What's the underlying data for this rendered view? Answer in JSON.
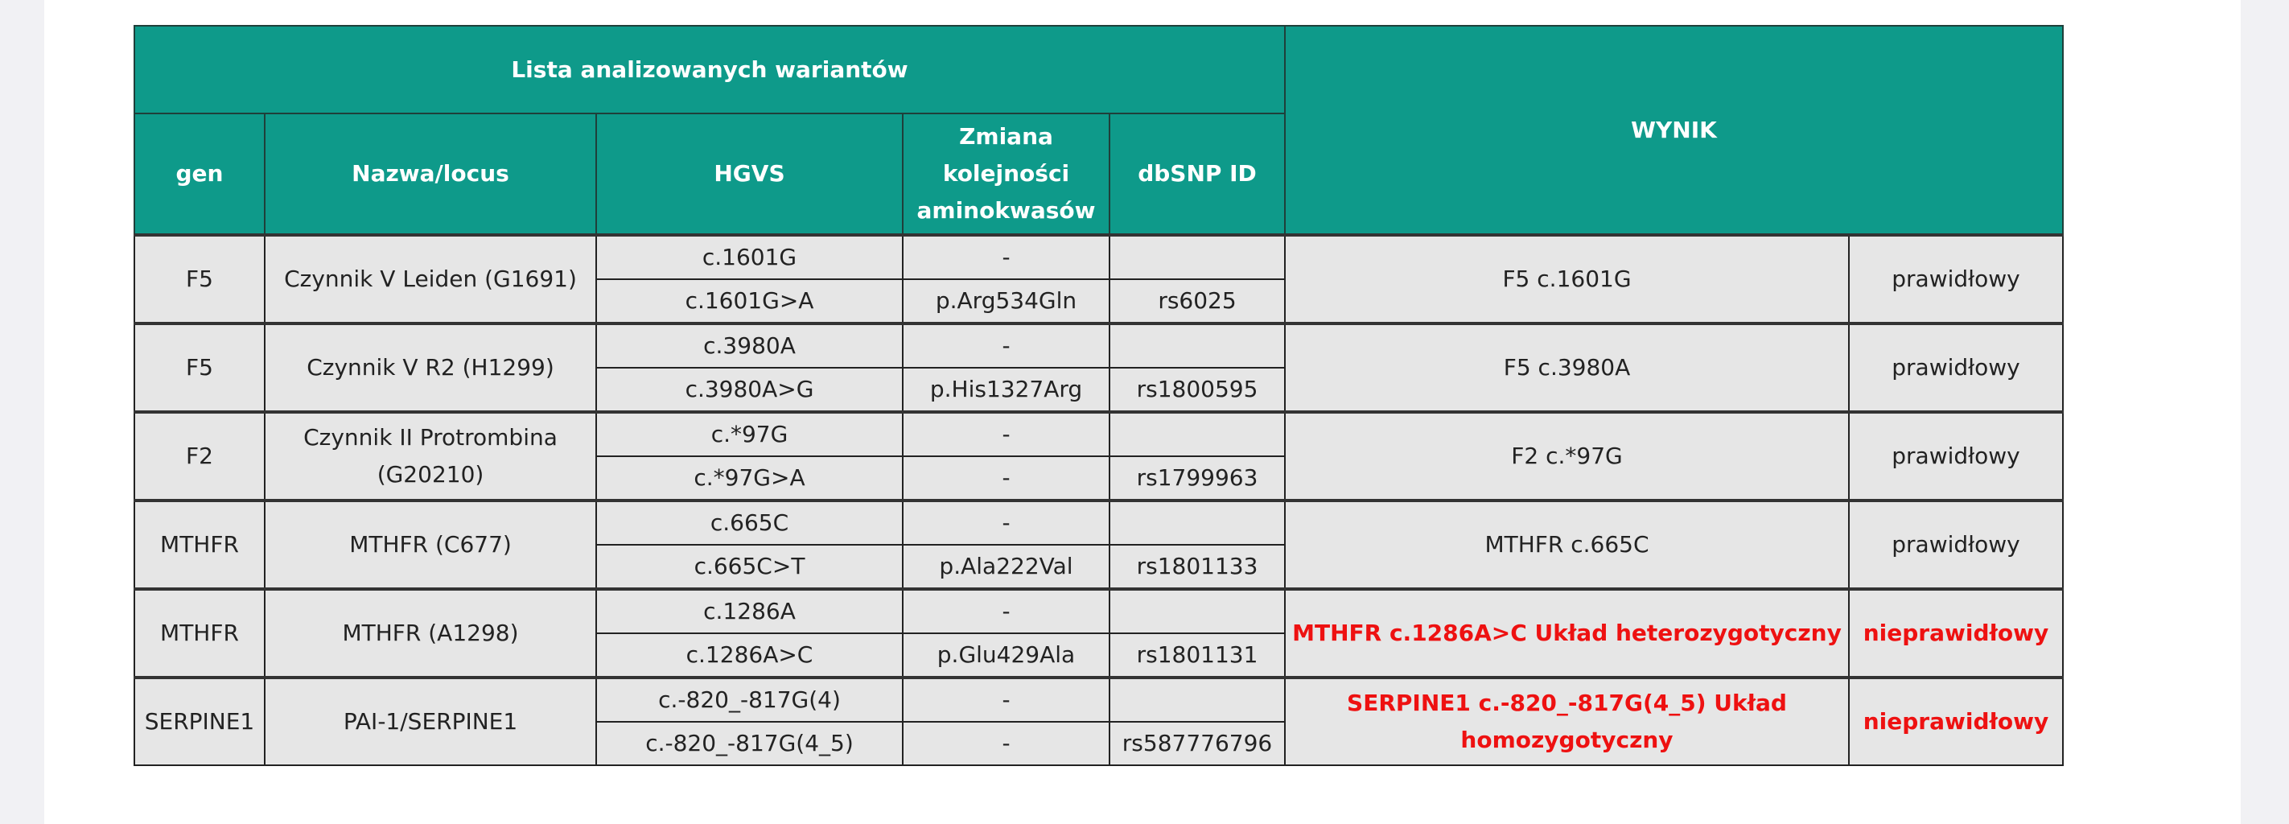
{
  "table": {
    "group_header": "Lista analizowanych wariantów",
    "result_header": "WYNIK",
    "columns": [
      "gen",
      "Nazwa/locus",
      "HGVS",
      "Zmiana kolejności aminokwasów",
      "dbSNP ID"
    ],
    "rows": [
      {
        "gen": "F5",
        "name": "Czynnik V Leiden (G1691)",
        "hgvs": [
          "c.1601G",
          "c.1601G>A"
        ],
        "aa": [
          "-",
          "p.Arg534Gln"
        ],
        "dbsnp": [
          "",
          "rs6025"
        ],
        "result": "F5 c.1601G",
        "status": "prawidłowy",
        "abnormal": false
      },
      {
        "gen": "F5",
        "name": "Czynnik V R2 (H1299)",
        "hgvs": [
          "c.3980A",
          "c.3980A>G"
        ],
        "aa": [
          "-",
          "p.His1327Arg"
        ],
        "dbsnp": [
          "",
          "rs1800595"
        ],
        "result": "F5 c.3980A",
        "status": "prawidłowy",
        "abnormal": false
      },
      {
        "gen": "F2",
        "name": "Czynnik II Protrombina (G20210)",
        "hgvs": [
          "c.*97G",
          "c.*97G>A"
        ],
        "aa": [
          "-",
          "-"
        ],
        "dbsnp": [
          "",
          "rs1799963"
        ],
        "result": "F2 c.*97G",
        "status": "prawidłowy",
        "abnormal": false
      },
      {
        "gen": "MTHFR",
        "name": "MTHFR (C677)",
        "hgvs": [
          "c.665C",
          "c.665C>T"
        ],
        "aa": [
          "-",
          "p.Ala222Val"
        ],
        "dbsnp": [
          "",
          "rs1801133"
        ],
        "result": "MTHFR c.665C",
        "status": "prawidłowy",
        "abnormal": false
      },
      {
        "gen": "MTHFR",
        "name": "MTHFR (A1298)",
        "hgvs": [
          "c.1286A",
          "c.1286A>C"
        ],
        "aa": [
          "-",
          "p.Glu429Ala"
        ],
        "dbsnp": [
          "",
          "rs1801131"
        ],
        "result": "MTHFR c.1286A>C Układ heterozygotyczny",
        "status": "nieprawidłowy",
        "abnormal": true
      },
      {
        "gen": "SERPINE1",
        "name": "PAI-1/SERPINE1",
        "hgvs": [
          "c.-820_-817G(4)",
          "c.-820_-817G(4_5)"
        ],
        "aa": [
          "-",
          "-"
        ],
        "dbsnp": [
          "",
          "rs587776796"
        ],
        "result": "SERPINE1 c.-820_-817G(4_5) Układ homozygotyczny",
        "status": "nieprawidłowy",
        "abnormal": true
      }
    ]
  },
  "colors": {
    "header_bg": "#0e9a8a",
    "cell_bg": "#e6e6e6",
    "abnormal_text": "#ee1111"
  }
}
